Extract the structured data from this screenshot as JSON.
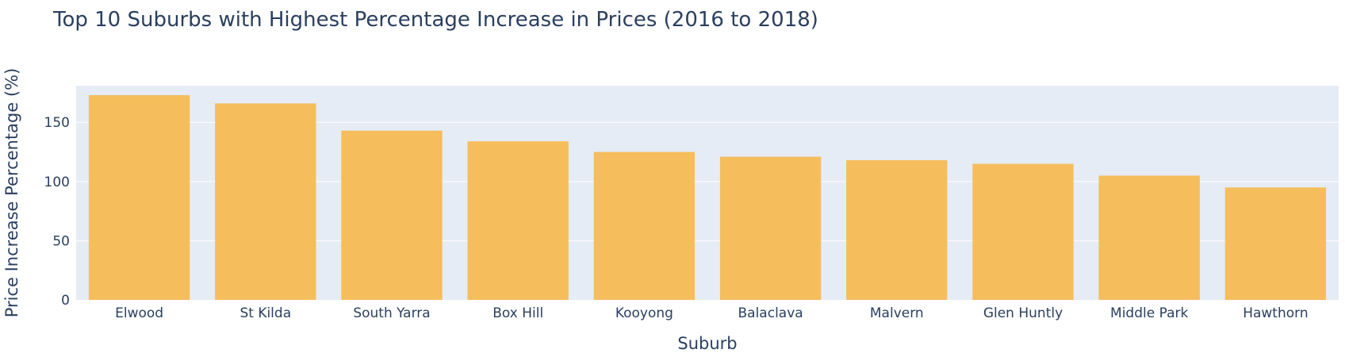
{
  "chart_data": {
    "type": "bar",
    "title": "Top 10 Suburbs with Highest Percentage Increase in Prices (2016 to 2018)",
    "xlabel": "Suburb",
    "ylabel": "Price Increase Percentage (%)",
    "categories": [
      "Elwood",
      "St Kilda",
      "South Yarra",
      "Box Hill",
      "Kooyong",
      "Balaclava",
      "Malvern",
      "Glen Huntly",
      "Middle Park",
      "Hawthorn"
    ],
    "values": [
      173,
      166,
      143,
      134,
      125,
      121,
      118,
      115,
      105,
      95
    ],
    "ylim": [
      0,
      181
    ],
    "yticks": [
      0,
      50,
      100,
      150
    ],
    "grid": true,
    "bar_color": "#f5bd5c",
    "plot_bg_color": "#e5ecf6",
    "text_color": "#2a3f5f"
  }
}
